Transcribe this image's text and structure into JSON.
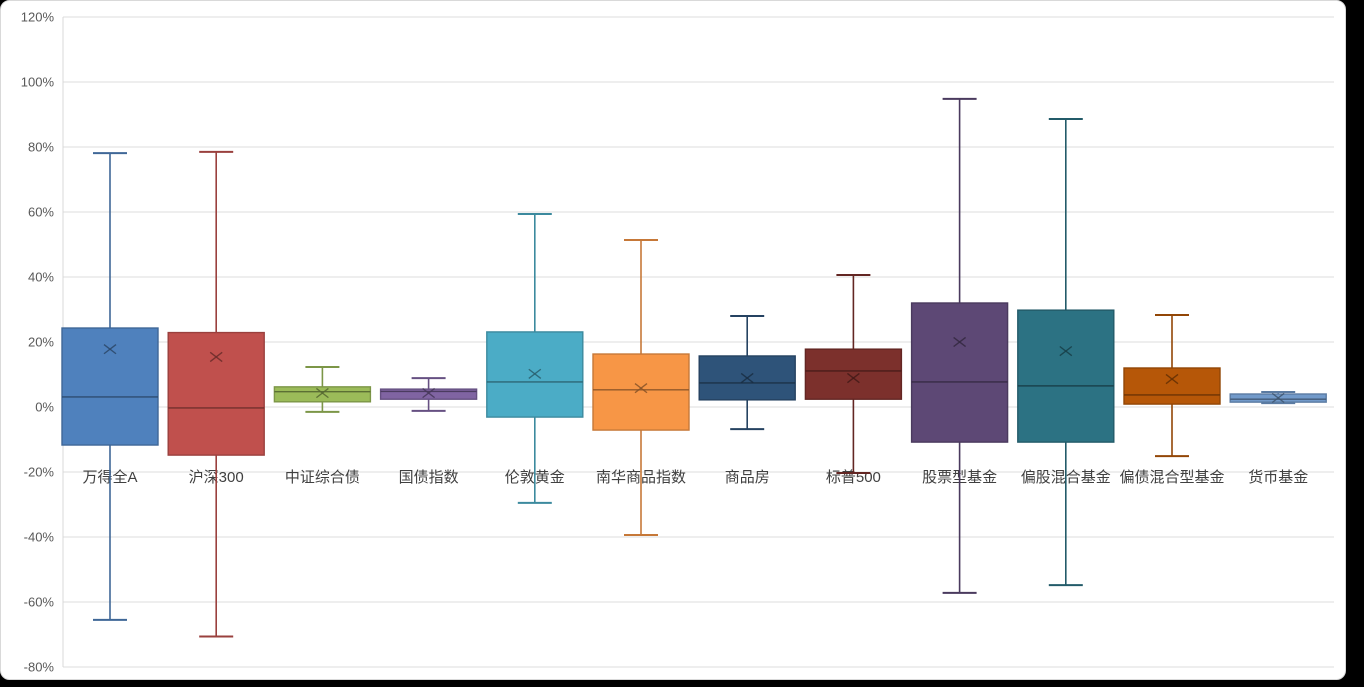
{
  "window": {
    "background": "#000000"
  },
  "chart": {
    "background": "#FFFFFF",
    "border_color": "#D9D9D9",
    "gridline_color": "#DCDCDC",
    "axis_line_color": "#D9D9D9",
    "y_tick_color": "#595959",
    "category_label_color": "#404040",
    "y_tick_font_size": 13,
    "category_font_size": 15
  },
  "chart_data": {
    "type": "boxplot",
    "title": "",
    "legend": "none",
    "grid": true,
    "unit": "percent",
    "y_axis": {
      "min": -80,
      "max": 120,
      "step": 20,
      "tick_labels": [
        "120%",
        "100%",
        "80%",
        "60%",
        "40%",
        "20%",
        "0%",
        "-20%",
        "-40%",
        "-60%",
        "-80%"
      ]
    },
    "categories": [
      "万得全A",
      "沪深300",
      "中证综合债",
      "国债指数",
      "伦敦黄金",
      "南华商品指数",
      "商品房",
      "标普500",
      "股票型基金",
      "偏股混合基金",
      "偏债混合型基金",
      "货币基金"
    ],
    "series": [
      {
        "name": "万得全A",
        "fill": "#4F81BD",
        "whisker_min": -65.5,
        "q1": -11.7,
        "median": 3.1,
        "mean": 17.8,
        "q3": 24.3,
        "whisker_max": 78.1
      },
      {
        "name": "沪深300",
        "fill": "#C0504D",
        "whisker_min": -70.6,
        "q1": -14.8,
        "median": -0.3,
        "mean": 15.4,
        "q3": 22.9,
        "whisker_max": 78.5
      },
      {
        "name": "中证综合债",
        "fill": "#9BBB59",
        "whisker_min": -1.5,
        "q1": 1.6,
        "median": 4.7,
        "mean": 4.3,
        "q3": 6.2,
        "whisker_max": 12.3
      },
      {
        "name": "国债指数",
        "fill": "#8064A2",
        "whisker_min": -1.2,
        "q1": 2.4,
        "median": 4.8,
        "mean": 4.3,
        "q3": 5.5,
        "whisker_max": 8.9
      },
      {
        "name": "伦敦黄金",
        "fill": "#4BACC6",
        "whisker_min": -29.5,
        "q1": -3.1,
        "median": 7.7,
        "mean": 10.2,
        "q3": 23.1,
        "whisker_max": 59.4
      },
      {
        "name": "南华商品指数",
        "fill": "#F79646",
        "whisker_min": -39.4,
        "q1": -7.1,
        "median": 5.3,
        "mean": 5.8,
        "q3": 16.3,
        "whisker_max": 51.4
      },
      {
        "name": "商品房",
        "fill": "#2E5379",
        "whisker_min": -6.8,
        "q1": 2.2,
        "median": 7.4,
        "mean": 8.9,
        "q3": 15.7,
        "whisker_max": 28.0
      },
      {
        "name": "标普500",
        "fill": "#7C302C",
        "whisker_min": -20.3,
        "q1": 2.4,
        "median": 11.1,
        "mean": 8.9,
        "q3": 17.8,
        "whisker_max": 40.6
      },
      {
        "name": "股票型基金",
        "fill": "#5D4875",
        "whisker_min": -57.2,
        "q1": -10.8,
        "median": 7.7,
        "mean": 20.0,
        "q3": 32.0,
        "whisker_max": 94.8
      },
      {
        "name": "偏股混合基金",
        "fill": "#2C7283",
        "whisker_min": -54.8,
        "q1": -10.8,
        "median": 6.5,
        "mean": 17.2,
        "q3": 29.8,
        "whisker_max": 88.6
      },
      {
        "name": "偏债混合型基金",
        "fill": "#B65708",
        "whisker_min": -15.1,
        "q1": 0.9,
        "median": 3.7,
        "mean": 8.6,
        "q3": 12.0,
        "whisker_max": 28.3
      },
      {
        "name": "货币基金",
        "fill": "#729ACA",
        "whisker_min": 1.2,
        "q1": 1.5,
        "median": 2.4,
        "mean": 2.8,
        "q3": 4.0,
        "whisker_max": 4.6
      }
    ]
  }
}
